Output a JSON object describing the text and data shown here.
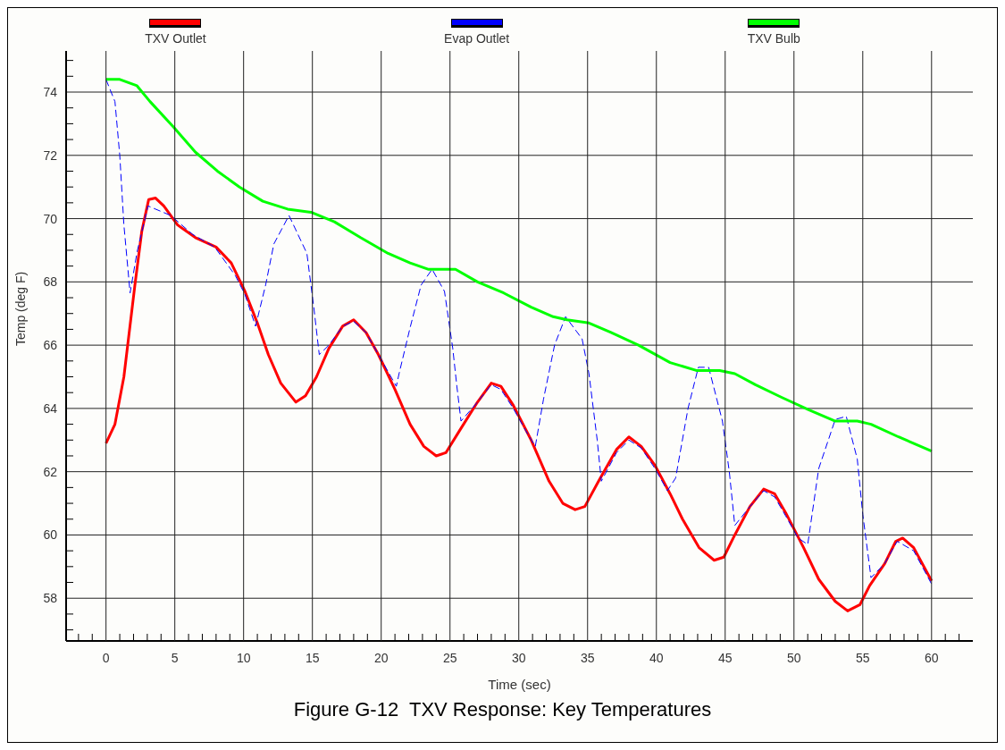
{
  "chart_data": {
    "type": "line",
    "title": "Figure G-12  TXV Response: Key Temperatures",
    "xlabel": "Time (sec)",
    "ylabel": "Temp (deg F)",
    "xlim": [
      -2.9,
      63
    ],
    "ylim": [
      56.65,
      75.3
    ],
    "xticks": [
      {
        "value": -2,
        "label": null
      },
      {
        "value": -1,
        "label": null
      },
      0,
      {
        "value": 1,
        "label": null
      },
      {
        "value": 2,
        "label": null
      },
      {
        "value": 3,
        "label": null
      },
      {
        "value": 4,
        "label": null
      },
      5,
      {
        "value": 6,
        "label": null
      },
      {
        "value": 7,
        "label": null
      },
      {
        "value": 8,
        "label": null
      },
      {
        "value": 9,
        "label": null
      },
      10,
      {
        "value": 11,
        "label": null
      },
      {
        "value": 12,
        "label": null
      },
      {
        "value": 13,
        "label": null
      },
      {
        "value": 14,
        "label": null
      },
      15,
      {
        "value": 16,
        "label": null
      },
      {
        "value": 17,
        "label": null
      },
      {
        "value": 18,
        "label": null
      },
      {
        "value": 19,
        "label": null
      },
      20,
      {
        "value": 21,
        "label": null
      },
      {
        "value": 22,
        "label": null
      },
      {
        "value": 23,
        "label": null
      },
      {
        "value": 24,
        "label": null
      },
      25,
      {
        "value": 26,
        "label": null
      },
      {
        "value": 27,
        "label": null
      },
      {
        "value": 28,
        "label": null
      },
      {
        "value": 29,
        "label": null
      },
      30,
      {
        "value": 31,
        "label": null
      },
      {
        "value": 32,
        "label": null
      },
      {
        "value": 33,
        "label": null
      },
      {
        "value": 34,
        "label": null
      },
      35,
      {
        "value": 36,
        "label": null
      },
      {
        "value": 37,
        "label": null
      },
      {
        "value": 38,
        "label": null
      },
      {
        "value": 39,
        "label": null
      },
      40,
      {
        "value": 41,
        "label": null
      },
      {
        "value": 42,
        "label": null
      },
      {
        "value": 43,
        "label": null
      },
      {
        "value": 44,
        "label": null
      },
      45,
      {
        "value": 46,
        "label": null
      },
      {
        "value": 47,
        "label": null
      },
      {
        "value": 48,
        "label": null
      },
      {
        "value": 49,
        "label": null
      },
      50,
      {
        "value": 51,
        "label": null
      },
      {
        "value": 52,
        "label": null
      },
      {
        "value": 53,
        "label": null
      },
      {
        "value": 54,
        "label": null
      },
      55,
      {
        "value": 56,
        "label": null
      },
      {
        "value": 57,
        "label": null
      },
      {
        "value": 58,
        "label": null
      },
      {
        "value": 59,
        "label": null
      },
      60,
      {
        "value": 61,
        "label": null
      },
      {
        "value": 62,
        "label": null
      }
    ],
    "yticks": [
      {
        "value": 57,
        "label": null
      },
      {
        "value": 57.5,
        "label": null
      },
      58,
      {
        "value": 58.5,
        "label": null
      },
      {
        "value": 59,
        "label": null
      },
      {
        "value": 59.5,
        "label": null
      },
      60,
      {
        "value": 60.5,
        "label": null
      },
      {
        "value": 61,
        "label": null
      },
      {
        "value": 61.5,
        "label": null
      },
      62,
      {
        "value": 62.5,
        "label": null
      },
      {
        "value": 63,
        "label": null
      },
      {
        "value": 63.5,
        "label": null
      },
      64,
      {
        "value": 64.5,
        "label": null
      },
      {
        "value": 65,
        "label": null
      },
      {
        "value": 65.5,
        "label": null
      },
      66,
      {
        "value": 66.5,
        "label": null
      },
      {
        "value": 67,
        "label": null
      },
      {
        "value": 67.5,
        "label": null
      },
      68,
      {
        "value": 68.5,
        "label": null
      },
      {
        "value": 69,
        "label": null
      },
      {
        "value": 69.5,
        "label": null
      },
      70,
      {
        "value": 70.5,
        "label": null
      },
      {
        "value": 71,
        "label": null
      },
      {
        "value": 71.5,
        "label": null
      },
      72,
      {
        "value": 72.5,
        "label": null
      },
      {
        "value": 73,
        "label": null
      },
      {
        "value": 73.5,
        "label": null
      },
      74,
      {
        "value": 74.5,
        "label": null
      },
      {
        "value": 75,
        "label": null
      }
    ],
    "grid": true,
    "legend": "top",
    "marker": "none",
    "series": [
      {
        "name": "TXV Outlet",
        "color": "#ff0000",
        "line_style": "solid",
        "x": [
          0,
          0.65,
          1.3,
          2.1,
          2.6,
          3.1,
          3.6,
          4.2,
          5.2,
          6.5,
          8,
          9.1,
          10.1,
          11,
          11.8,
          12.7,
          13.8,
          14.5,
          15.3,
          16.2,
          17.2,
          18,
          18.9,
          19.8,
          21,
          22.1,
          23.1,
          24,
          24.7,
          25.7,
          27,
          28,
          28.7,
          29.6,
          30.9,
          32.2,
          33.2,
          34.1,
          34.8,
          35.8,
          37.1,
          38,
          38.9,
          39.9,
          41,
          41.9,
          43.1,
          44.2,
          44.9,
          45.7,
          46.8,
          47.8,
          48.6,
          49.4,
          50.7,
          51.8,
          53,
          53.9,
          54.8,
          55.5,
          56.6,
          57.4,
          57.9,
          58.7,
          60
        ],
        "values": [
          62.9,
          63.5,
          65.0,
          67.9,
          69.6,
          70.6,
          70.65,
          70.4,
          69.8,
          69.4,
          69.1,
          68.6,
          67.7,
          66.7,
          65.7,
          64.8,
          64.2,
          64.4,
          65.0,
          65.9,
          66.6,
          66.8,
          66.4,
          65.7,
          64.6,
          63.5,
          62.8,
          62.5,
          62.6,
          63.3,
          64.2,
          64.8,
          64.7,
          64.1,
          63.0,
          61.7,
          61.0,
          60.8,
          60.9,
          61.7,
          62.7,
          63.1,
          62.8,
          62.2,
          61.3,
          60.5,
          59.6,
          59.2,
          59.3,
          60.0,
          60.9,
          61.45,
          61.3,
          60.7,
          59.6,
          58.6,
          57.9,
          57.6,
          57.8,
          58.4,
          59.1,
          59.8,
          59.9,
          59.6,
          58.55
        ]
      },
      {
        "name": "Evap Outlet",
        "color": "#0000ff",
        "line_style": "dashed",
        "x": [
          0,
          0.65,
          1,
          1.3,
          1.75,
          2.26,
          3.05,
          4.7,
          6.3,
          7.9,
          9.4,
          10.1,
          10.87,
          11.6,
          12.2,
          13.3,
          14.6,
          15.1,
          15.5,
          16.2,
          17.2,
          18,
          18.9,
          19.8,
          21.1,
          21.3,
          22.1,
          22.9,
          23.7,
          24.6,
          25.2,
          25.5,
          25.8,
          27,
          28,
          28.7,
          29.6,
          30.5,
          31.2,
          31.8,
          32.6,
          33.4,
          34.6,
          35.1,
          35.7,
          36,
          37.1,
          38,
          38.9,
          39.9,
          40.8,
          41.4,
          42.3,
          43.05,
          43.8,
          44.8,
          45.3,
          45.7,
          46.8,
          47.8,
          48.6,
          49.4,
          50.3,
          51,
          51.8,
          53,
          53.8,
          54.6,
          55,
          55.6,
          56.6,
          57.5,
          58.7,
          60
        ],
        "values": [
          74.4,
          73.7,
          72.0,
          69.8,
          67.65,
          68.95,
          70.4,
          70.1,
          69.5,
          69.1,
          68.2,
          67.6,
          66.6,
          67.9,
          69.2,
          70.1,
          68.9,
          67.2,
          65.7,
          66.0,
          66.6,
          66.75,
          66.4,
          65.7,
          64.7,
          65.1,
          66.55,
          67.9,
          68.4,
          67.7,
          65.9,
          64.7,
          63.6,
          64.2,
          64.75,
          64.6,
          64.0,
          63.3,
          62.8,
          64.3,
          66.0,
          66.9,
          66.2,
          65.1,
          63.0,
          61.7,
          62.6,
          63.0,
          62.75,
          62.1,
          61.4,
          61.8,
          64.0,
          65.3,
          65.3,
          63.6,
          62.0,
          60.3,
          60.9,
          61.4,
          61.2,
          60.6,
          59.9,
          59.7,
          62.1,
          63.65,
          63.75,
          62.4,
          60.65,
          58.65,
          59.1,
          59.8,
          59.5,
          58.45
        ]
      },
      {
        "name": "TXV Bulb",
        "color": "#00ff00",
        "line_style": "solid",
        "x": [
          0,
          1,
          2.25,
          3.2,
          4.9,
          6.5,
          8.1,
          9.7,
          11.4,
          13.2,
          14.9,
          16.6,
          18.5,
          20.5,
          22.1,
          23.4,
          25.4,
          27,
          28.9,
          30.9,
          32.5,
          33.5,
          35.1,
          36.7,
          38.7,
          41,
          42.9,
          44.6,
          45.7,
          47.2,
          49.1,
          51.1,
          53,
          54.6,
          55.6,
          57.6,
          60
        ],
        "values": [
          74.4,
          74.4,
          74.2,
          73.7,
          72.9,
          72.1,
          71.5,
          71.0,
          70.55,
          70.3,
          70.2,
          69.9,
          69.4,
          68.9,
          68.6,
          68.4,
          68.4,
          68.0,
          67.65,
          67.2,
          66.9,
          66.8,
          66.7,
          66.4,
          66.0,
          65.45,
          65.2,
          65.2,
          65.1,
          64.75,
          64.35,
          63.95,
          63.6,
          63.6,
          63.5,
          63.1,
          62.65
        ]
      }
    ]
  }
}
